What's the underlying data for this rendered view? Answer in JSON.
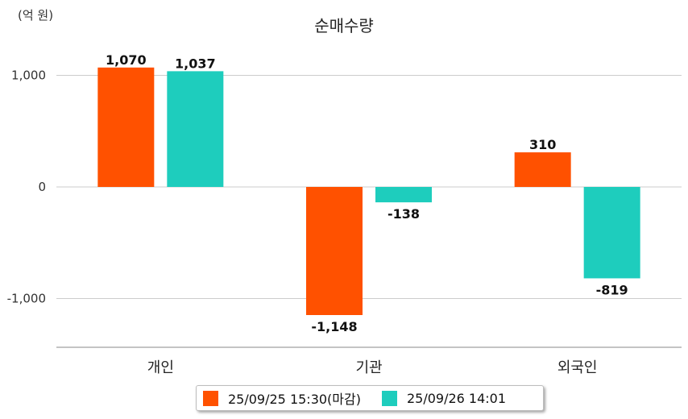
{
  "unit_label": "(억 원)",
  "chart_data": {
    "type": "bar",
    "title": "순매수량",
    "categories": [
      "개인",
      "기관",
      "외국인"
    ],
    "series": [
      {
        "name": "25/09/25 15:30(마감)",
        "values": [
          1070,
          -1148,
          310
        ],
        "labels": [
          "1,070",
          "-1,148",
          "310"
        ]
      },
      {
        "name": "25/09/26 14:01",
        "values": [
          1037,
          -138,
          -819
        ],
        "labels": [
          "1,037",
          "-138",
          "-819"
        ]
      }
    ],
    "yticks": [
      1000,
      0,
      -1000
    ],
    "ytick_labels": [
      "1,000",
      "0",
      "-1,000"
    ],
    "ylim": [
      -1440,
      1440
    ],
    "grid": true,
    "legend_position": "bottom",
    "colors": [
      "#ff5100",
      "#1ecdbd"
    ]
  }
}
